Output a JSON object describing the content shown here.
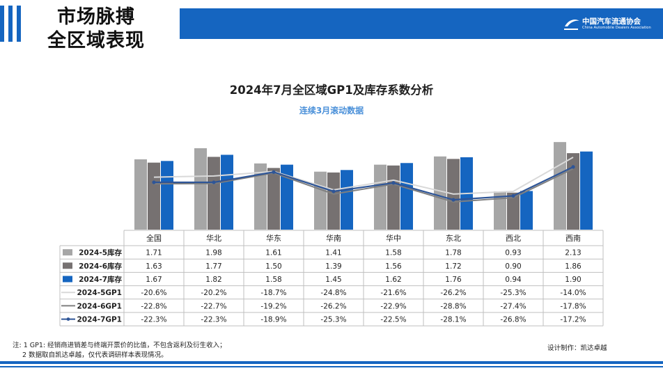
{
  "header": {
    "headline_line1": "市场脉搏",
    "headline_line2": "全区域表现",
    "logo_cn": "中国汽车流通协会",
    "logo_en": "China Automobile Dealers Association"
  },
  "chart_data": {
    "type": "bar",
    "title": "2024年7月全区域GP1及库存系数分析",
    "subtitle": "连续3月滚动数据",
    "categories": [
      "全国",
      "华北",
      "华东",
      "华南",
      "华中",
      "东北",
      "西北",
      "西南"
    ],
    "bar_series": [
      {
        "name": "2024-5库存",
        "color": "#a6a6a6",
        "values": [
          1.71,
          1.98,
          1.61,
          1.41,
          1.58,
          1.78,
          0.93,
          2.13
        ]
      },
      {
        "name": "2024-6库存",
        "color": "#767171",
        "values": [
          1.63,
          1.77,
          1.5,
          1.39,
          1.56,
          1.72,
          0.9,
          1.86
        ]
      },
      {
        "name": "2024-7库存",
        "color": "#1565c0",
        "values": [
          1.67,
          1.82,
          1.58,
          1.45,
          1.62,
          1.76,
          0.94,
          1.9
        ]
      }
    ],
    "line_series": [
      {
        "name": "2024-5GP1",
        "color": "#d9d9d9",
        "values": [
          -20.6,
          -20.2,
          -18.7,
          -24.8,
          -21.6,
          -26.2,
          -25.3,
          -14.0
        ],
        "labels": [
          "-20.6%",
          "-20.2%",
          "-18.7%",
          "-24.8%",
          "-21.6%",
          "-26.2%",
          "-25.3%",
          "-14.0%"
        ]
      },
      {
        "name": "2024-6GP1",
        "color": "#7f7f7f",
        "values": [
          -22.8,
          -22.7,
          -19.2,
          -26.2,
          -22.9,
          -28.8,
          -27.4,
          -17.8
        ],
        "labels": [
          "-22.8%",
          "-22.7%",
          "-19.2%",
          "-26.2%",
          "-22.9%",
          "-28.8%",
          "-27.4%",
          "-17.8%"
        ]
      },
      {
        "name": "2024-7GP1",
        "color": "#2e5597",
        "values": [
          -22.3,
          -22.3,
          -18.9,
          -25.3,
          -22.5,
          -28.1,
          -26.8,
          -17.2
        ],
        "labels": [
          "-22.3%",
          "-22.3%",
          "-18.9%",
          "-25.3%",
          "-22.5%",
          "-28.1%",
          "-26.8%",
          "-17.2%"
        ]
      }
    ],
    "bar_axis_range": [
      0,
      2.2
    ],
    "line_axis_range": [
      -38,
      -8
    ],
    "legend": "data-table-below"
  },
  "notes": {
    "line1": "注: 1 GP1: 经销商进销差与终端开票价的比值，不包含返利及衍生收入；",
    "line2": "2 数据取自凯达卓越，仅代表调研样本表现情况。",
    "credit": "设计制作：凯达卓越"
  }
}
